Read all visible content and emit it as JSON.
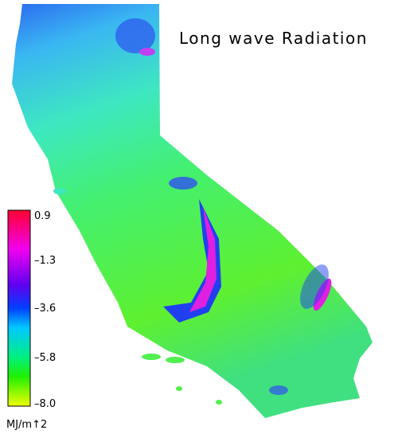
{
  "title": "Long wave Radiation",
  "legend": {
    "ticks": [
      "0.9",
      "–1.3",
      "–3.6",
      "–5.8",
      "–8.0"
    ],
    "unit": "MJ/m↑2"
  }
}
